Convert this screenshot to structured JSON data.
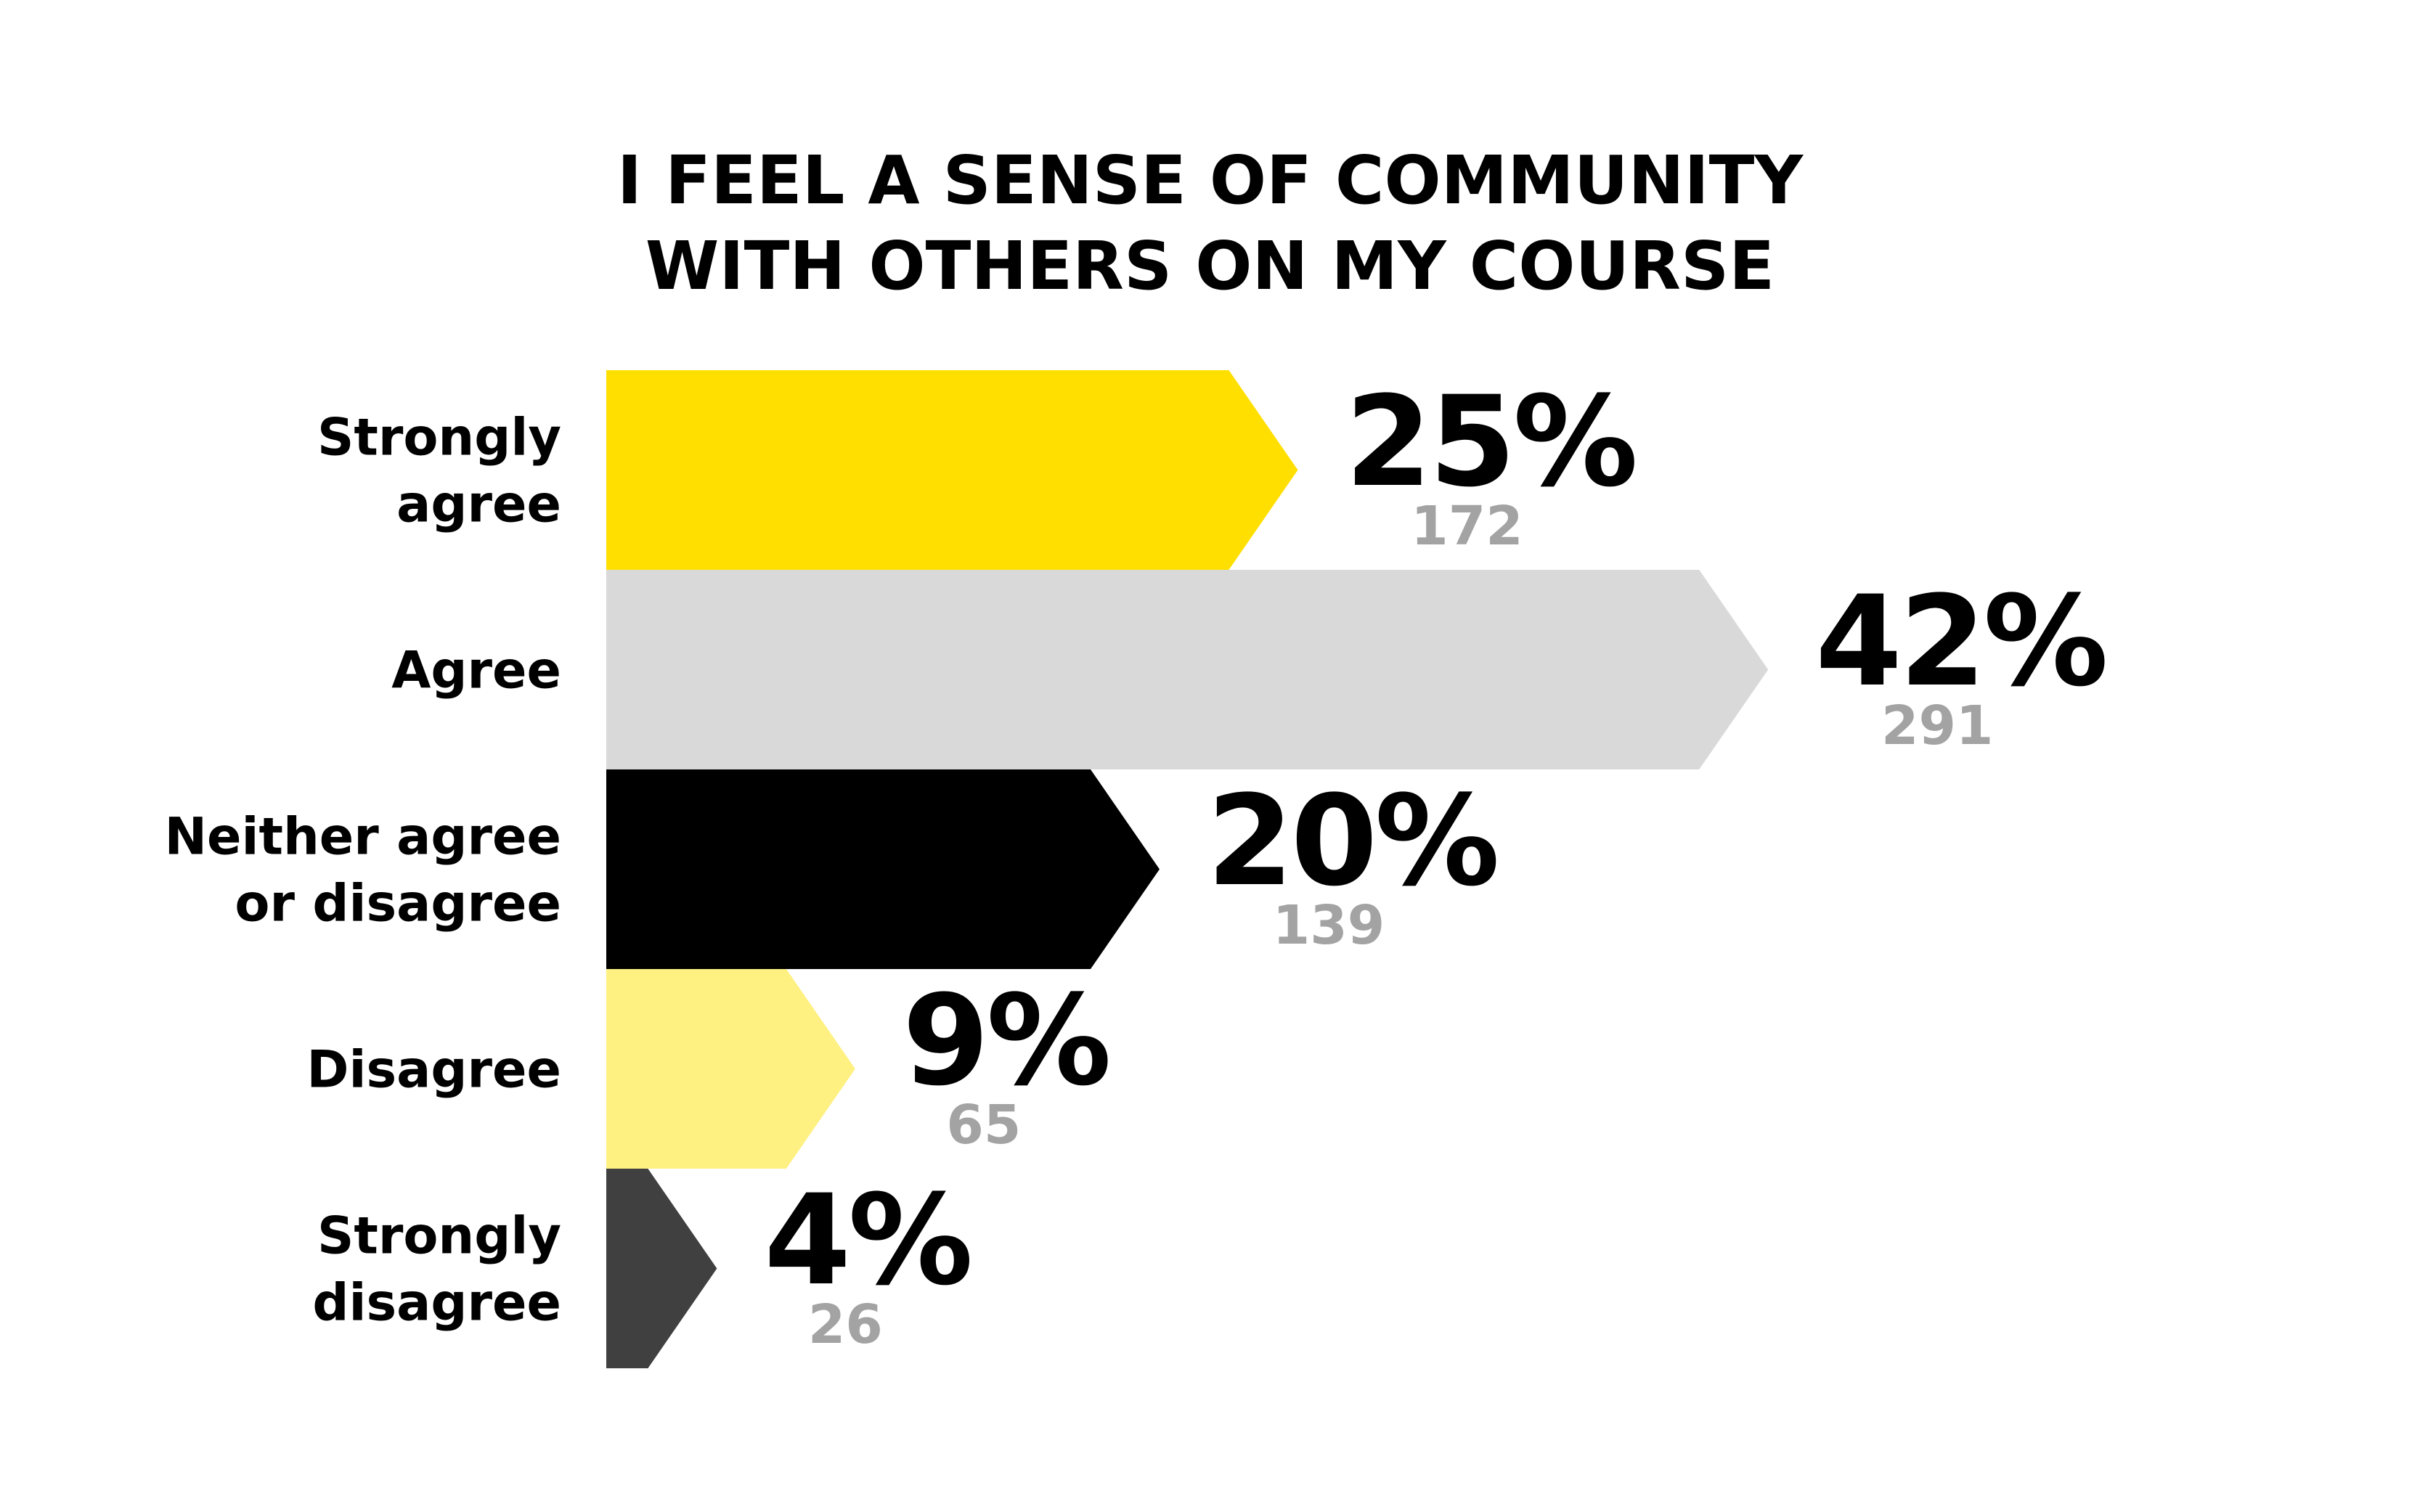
{
  "chart_data": {
    "type": "bar",
    "orientation": "horizontal",
    "title_lines": [
      "I FEEL A SENSE OF COMMUNITY",
      "WITH OTHERS ON MY COURSE"
    ],
    "categories": [
      [
        "Strongly",
        "agree"
      ],
      [
        "Agree"
      ],
      [
        "Neither agree",
        "or disagree"
      ],
      [
        "Disagree"
      ],
      [
        "Strongly",
        "disagree"
      ]
    ],
    "series": [
      {
        "values": [
          25,
          42,
          20,
          9,
          4
        ],
        "value_labels": [
          "25%",
          "42%",
          "20%",
          "9%",
          "4%"
        ],
        "counts": [
          "172",
          "291",
          "139",
          "65",
          "26"
        ],
        "colors": [
          "#ffdf00",
          "#d9d9d9",
          "#000000",
          "#fff082",
          "#404040"
        ]
      }
    ],
    "xlabel": "",
    "ylabel": "",
    "grid": false,
    "legend": "none"
  }
}
